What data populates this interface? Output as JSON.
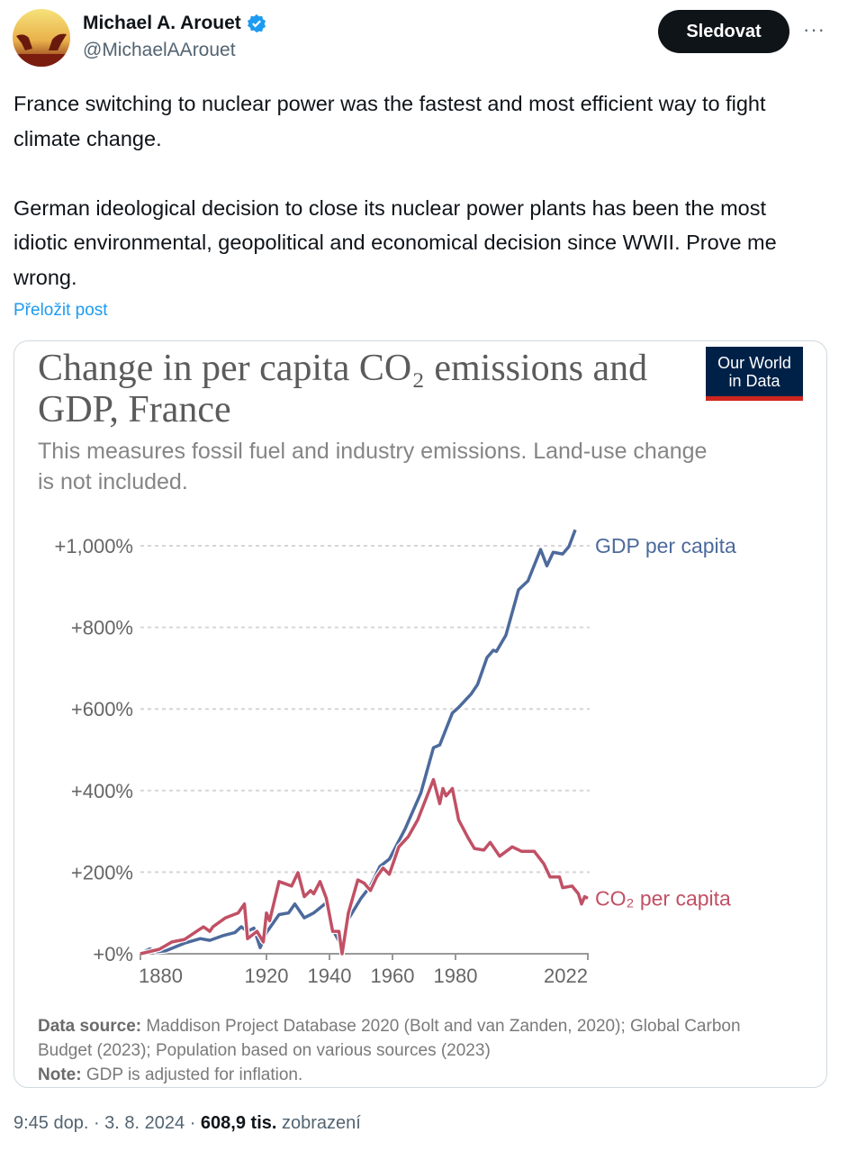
{
  "author": {
    "name": "Michael A. Arouet",
    "handle": "@MichaelAArouet",
    "verified": true,
    "follow_label": "Sledovat",
    "more_label": "···"
  },
  "tweet": {
    "text": "France switching to nuclear power was the fastest and most efficient way to fight climate change.\n\nGerman ideological decision to close its nuclear power plants has been the most idiotic environmental, geopolitical and economical decision since WWII. Prove me wrong.",
    "translate_label": "Přeložit post"
  },
  "chart_card": {
    "logo_line1": "Our World",
    "logo_line2": "in Data",
    "source_label": "Data source:",
    "source_text": " Maddison Project Database 2020 (Bolt and van Zanden, 2020); Global Carbon Budget (2023); Population based on various sources (2023)",
    "note_label": "Note:",
    "note_text": " GDP is adjusted for inflation."
  },
  "chart_data": {
    "type": "line",
    "title": "Change in per capita CO₂ emissions and GDP, France",
    "subtitle": "This measures fossil fuel and industry emissions. Land-use change is not included.",
    "xlabel": "",
    "ylabel": "",
    "xlim": [
      1880,
      2022
    ],
    "ylim": [
      0,
      1000
    ],
    "x_ticks": [
      1880,
      1920,
      1940,
      1960,
      1980,
      2022
    ],
    "y_ticks": [
      0,
      200,
      400,
      600,
      800,
      1000
    ],
    "y_tick_labels": [
      "+0%",
      "+200%",
      "+400%",
      "+600%",
      "+800%",
      "+1,000%"
    ],
    "grid": true,
    "legend": "inline-right",
    "series": [
      {
        "name": "GDP per capita",
        "color": "#4c6a9c",
        "points": [
          [
            1880,
            0
          ],
          [
            1883,
            12
          ],
          [
            1885,
            5
          ],
          [
            1888,
            7
          ],
          [
            1894,
            26
          ],
          [
            1899,
            37
          ],
          [
            1902,
            33
          ],
          [
            1906,
            44
          ],
          [
            1910,
            52
          ],
          [
            1912,
            66
          ],
          [
            1914,
            55
          ],
          [
            1916,
            63
          ],
          [
            1918,
            15
          ],
          [
            1920,
            52
          ],
          [
            1922,
            74
          ],
          [
            1924,
            96
          ],
          [
            1927,
            100
          ],
          [
            1929,
            122
          ],
          [
            1932,
            88
          ],
          [
            1935,
            100
          ],
          [
            1939,
            125
          ],
          [
            1941,
            59
          ],
          [
            1944,
            18
          ],
          [
            1946,
            85
          ],
          [
            1950,
            136
          ],
          [
            1953,
            166
          ],
          [
            1956,
            214
          ],
          [
            1959,
            232
          ],
          [
            1964,
            306
          ],
          [
            1969,
            394
          ],
          [
            1973,
            505
          ],
          [
            1975,
            512
          ],
          [
            1979,
            590
          ],
          [
            1981,
            604
          ],
          [
            1985,
            637
          ],
          [
            1987,
            660
          ],
          [
            1990,
            726
          ],
          [
            1992,
            744
          ],
          [
            1993,
            741
          ],
          [
            1996,
            781
          ],
          [
            2000,
            892
          ],
          [
            2003,
            914
          ],
          [
            2007,
            991
          ],
          [
            2009,
            951
          ],
          [
            2011,
            984
          ],
          [
            2014,
            980
          ],
          [
            2016,
            998
          ],
          [
            2018,
            1039
          ]
        ]
      },
      {
        "name": "CO₂ per capita",
        "color": "#c15065",
        "points": [
          [
            1880,
            0
          ],
          [
            1886,
            11
          ],
          [
            1890,
            29
          ],
          [
            1894,
            35
          ],
          [
            1900,
            66
          ],
          [
            1902,
            55
          ],
          [
            1903,
            66
          ],
          [
            1907,
            88
          ],
          [
            1911,
            100
          ],
          [
            1913,
            122
          ],
          [
            1914,
            37
          ],
          [
            1917,
            55
          ],
          [
            1919,
            29
          ],
          [
            1920,
            100
          ],
          [
            1921,
            81
          ],
          [
            1924,
            177
          ],
          [
            1928,
            166
          ],
          [
            1930,
            199
          ],
          [
            1932,
            140
          ],
          [
            1934,
            155
          ],
          [
            1935,
            147
          ],
          [
            1937,
            177
          ],
          [
            1939,
            136
          ],
          [
            1941,
            55
          ],
          [
            1943,
            55
          ],
          [
            1944,
            0
          ],
          [
            1946,
            100
          ],
          [
            1949,
            181
          ],
          [
            1951,
            173
          ],
          [
            1953,
            155
          ],
          [
            1955,
            188
          ],
          [
            1957,
            210
          ],
          [
            1959,
            195
          ],
          [
            1962,
            262
          ],
          [
            1965,
            287
          ],
          [
            1968,
            328
          ],
          [
            1973,
            427
          ],
          [
            1975,
            368
          ],
          [
            1976,
            405
          ],
          [
            1977,
            387
          ],
          [
            1979,
            405
          ],
          [
            1981,
            328
          ],
          [
            1984,
            284
          ],
          [
            1986,
            258
          ],
          [
            1989,
            254
          ],
          [
            1991,
            273
          ],
          [
            1994,
            239
          ],
          [
            1998,
            262
          ],
          [
            2001,
            251
          ],
          [
            2005,
            251
          ],
          [
            2008,
            221
          ],
          [
            2010,
            188
          ],
          [
            2013,
            188
          ],
          [
            2014,
            162
          ],
          [
            2017,
            166
          ],
          [
            2019,
            147
          ],
          [
            2020,
            122
          ],
          [
            2021,
            140
          ],
          [
            2022,
            136
          ]
        ]
      }
    ]
  },
  "footer": {
    "time_date": "9:45 dop. · 3. 8. 2024 · ",
    "views": "608,9 tis.",
    "views_label": " zobrazení"
  }
}
